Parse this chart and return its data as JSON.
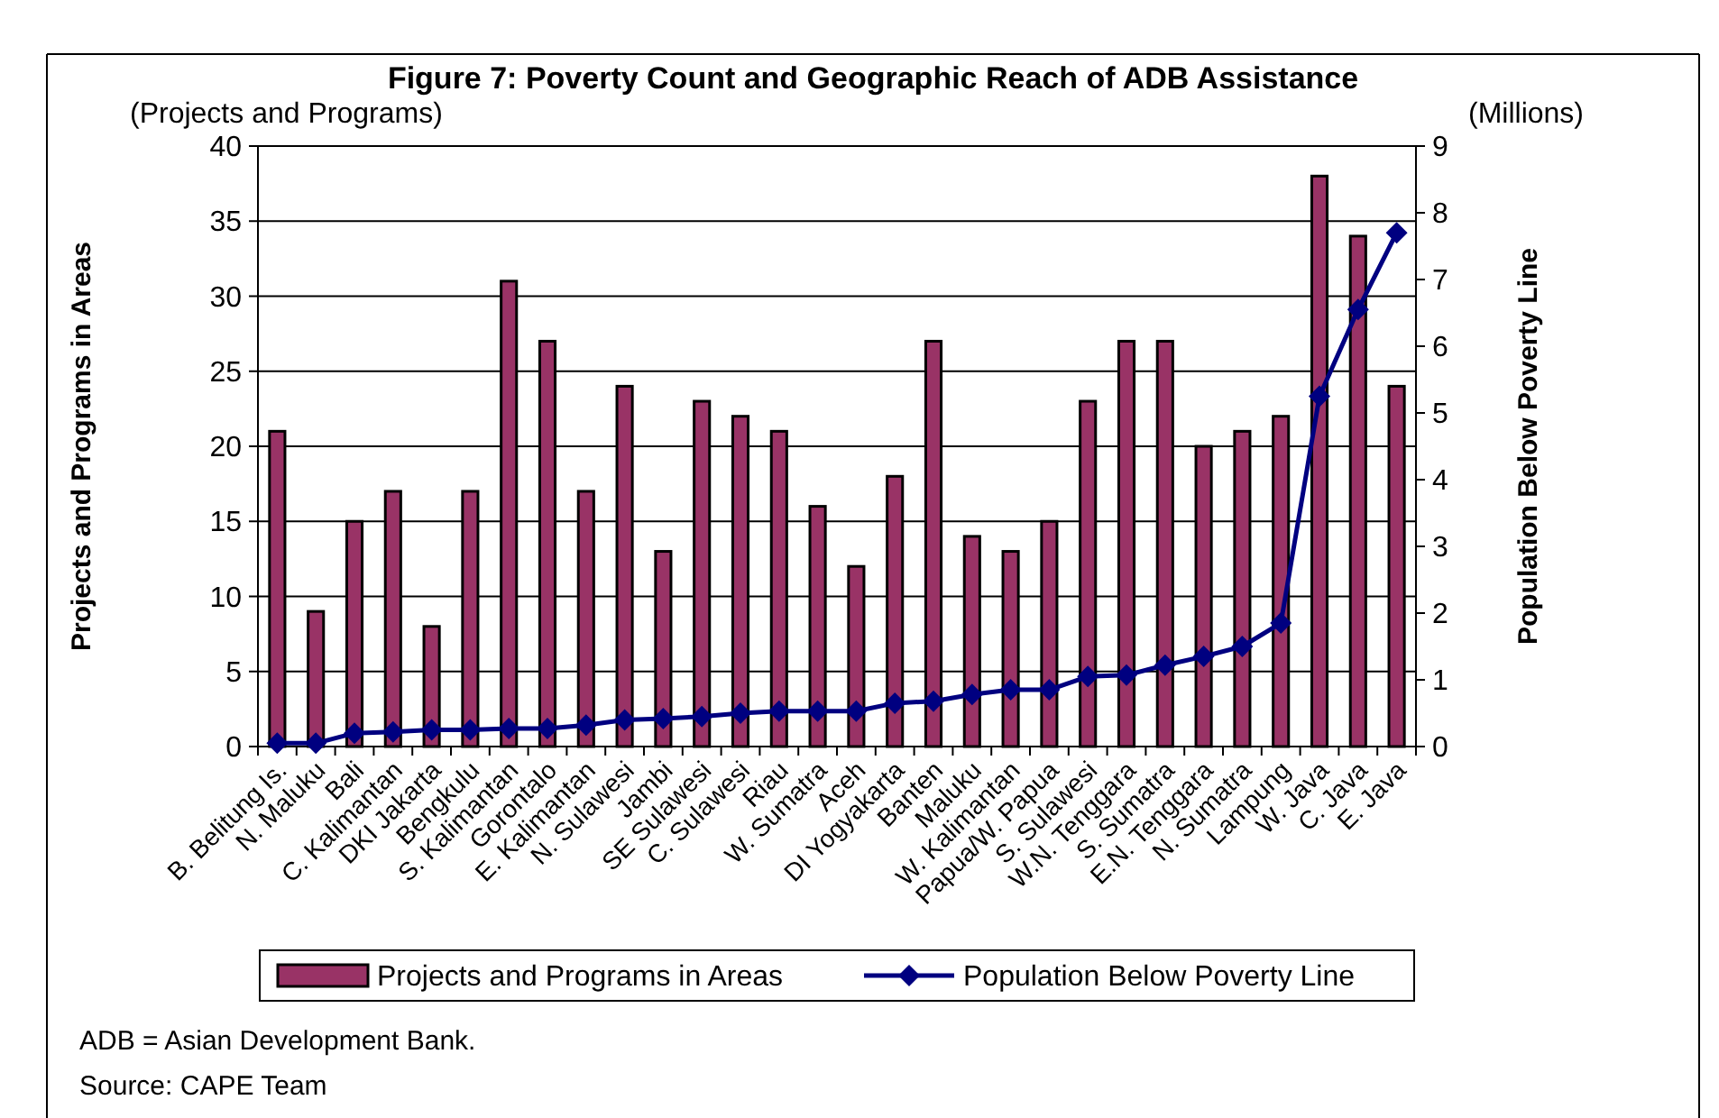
{
  "chart_data": {
    "type": "bar",
    "title": "Figure 7: Poverty Count and Geographic Reach of ADB Assistance",
    "ylabel": "Projects and Programs in Areas",
    "y2label": "Population Below Poverty Line",
    "categories": [
      "B. Belitung Is.",
      "N. Maluku",
      "Bali",
      "C. Kalimantan",
      "DKI Jakarta",
      "Bengkulu",
      "S. Kalimantan",
      "Gorontalo",
      "E. Kalimantan",
      "N. Sulawesi",
      "Jambi",
      "SE Sulawesi",
      "C. Sulawesi",
      "Riau",
      "W. Sumatra",
      "Aceh",
      "DI Yogyakarta",
      "Banten",
      "Maluku",
      "W. Kalimantan",
      "Papua/W. Papua",
      "S. Sulawesi",
      "W.N. Tenggara",
      "S. Sumatra",
      "E.N. Tenggara",
      "N. Sumatra",
      "Lampung",
      "W. Java",
      "C. Java",
      "E. Java"
    ],
    "series": [
      {
        "name": "Projects and Programs in Areas",
        "color": "#993366",
        "values": [
          21,
          9,
          15,
          17,
          8,
          17,
          31,
          27,
          17,
          24,
          13,
          23,
          22,
          21,
          16,
          12,
          18,
          27,
          14,
          13,
          15,
          23,
          27,
          27,
          20,
          21,
          22,
          38,
          34,
          24
        ]
      },
      {
        "name": "Population Below Poverty Line",
        "type": "line",
        "axis": "y2",
        "color": "#000080",
        "marker": "diamond",
        "values": [
          0.05,
          0.05,
          0.2,
          0.22,
          0.25,
          0.25,
          0.27,
          0.27,
          0.32,
          0.4,
          0.42,
          0.45,
          0.5,
          0.53,
          0.53,
          0.53,
          0.65,
          0.68,
          0.78,
          0.85,
          0.85,
          1.05,
          1.07,
          1.22,
          1.35,
          1.5,
          1.85,
          5.25,
          6.55,
          7.7
        ]
      }
    ],
    "ylim": [
      0,
      40
    ],
    "yticks": [
      0,
      5,
      10,
      15,
      20,
      25,
      30,
      35,
      40
    ],
    "y2lim": [
      0,
      9
    ],
    "y2ticks": [
      0,
      1,
      2,
      3,
      4,
      5,
      6,
      7,
      8,
      9
    ],
    "grid": "y",
    "legend": "bottom",
    "annotations": [
      "(Projects and Programs)",
      "(Millions)",
      "ADB = Asian Development Bank.",
      "Source: CAPE Team"
    ]
  }
}
